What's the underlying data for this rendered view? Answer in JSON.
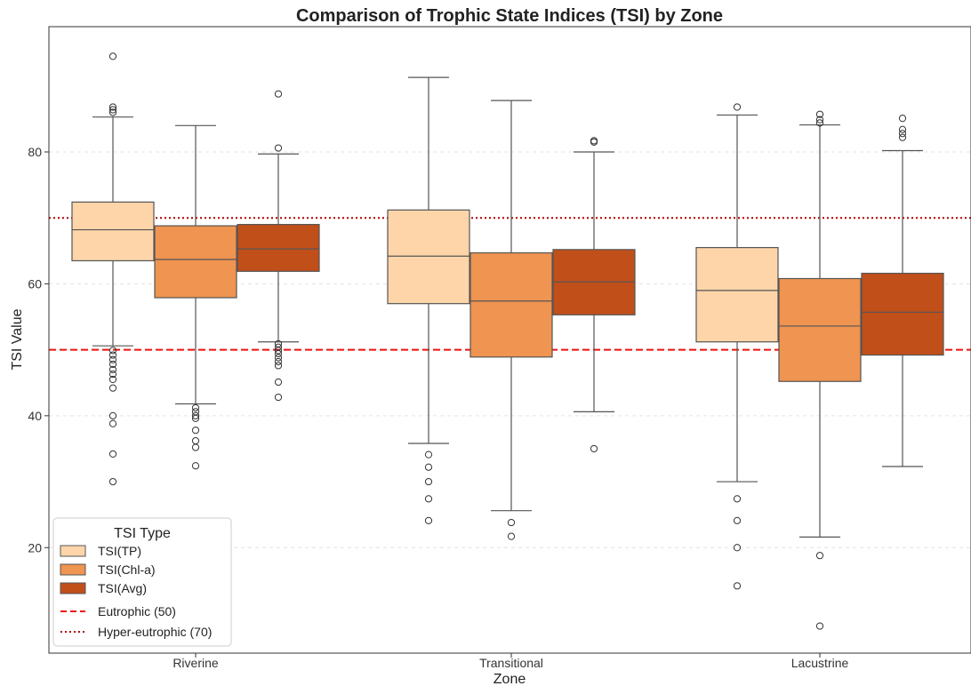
{
  "chart_data": {
    "type": "box",
    "title": "Comparison of Trophic State Indices (TSI) by Zone",
    "xlabel": "Zone",
    "ylabel": "TSI Value",
    "ylim": [
      4,
      99
    ],
    "yticks": [
      20,
      40,
      60,
      80
    ],
    "grid": "horizontal dashed",
    "categories": [
      "Riverine",
      "Transitional",
      "Lacustrine"
    ],
    "legend": {
      "title": "TSI Type",
      "position": "lower-left"
    },
    "series": [
      {
        "name": "TSI(TP)",
        "color": "#fdd5a9",
        "boxes": [
          {
            "whislo": 50.6,
            "q1": 63.5,
            "med": 68.2,
            "q3": 72.4,
            "whishi": 85.3,
            "fliers": [
              86.0,
              86.4,
              86.8,
              94.5,
              49.9,
              49.2,
              48.5,
              47.8,
              47.0,
              46.3,
              45.5,
              44.2,
              40.0,
              38.8,
              34.2,
              30.0
            ]
          },
          {
            "whislo": 35.8,
            "q1": 57.0,
            "med": 64.2,
            "q3": 71.2,
            "whishi": 91.3,
            "fliers": [
              34.1,
              32.2,
              30.0,
              27.4,
              24.1
            ]
          },
          {
            "whislo": 30.0,
            "q1": 51.2,
            "med": 59.0,
            "q3": 65.5,
            "whishi": 85.6,
            "fliers": [
              86.8,
              27.4,
              24.1,
              20.0,
              14.2
            ]
          }
        ]
      },
      {
        "name": "TSI(Chl-a)",
        "color": "#ef9451",
        "boxes": [
          {
            "whislo": 41.8,
            "q1": 57.9,
            "med": 63.7,
            "q3": 68.8,
            "whishi": 84.0,
            "fliers": [
              41.2,
              40.6,
              40.0,
              39.6,
              37.8,
              36.2,
              35.2,
              32.4
            ]
          },
          {
            "whislo": 25.6,
            "q1": 48.9,
            "med": 57.4,
            "q3": 64.7,
            "whishi": 87.8,
            "fliers": [
              23.8,
              21.7
            ]
          },
          {
            "whislo": 21.6,
            "q1": 45.2,
            "med": 53.6,
            "q3": 60.8,
            "whishi": 84.1,
            "fliers": [
              85.7,
              84.9,
              84.4,
              18.8,
              8.1
            ]
          }
        ]
      },
      {
        "name": "TSI(Avg)",
        "color": "#c14f1a",
        "boxes": [
          {
            "whislo": 51.2,
            "q1": 61.9,
            "med": 65.3,
            "q3": 69.0,
            "whishi": 79.7,
            "fliers": [
              80.6,
              88.8,
              50.9,
              50.4,
              49.9,
              49.4,
              48.8,
              48.2,
              47.6,
              45.1,
              42.8
            ]
          },
          {
            "whislo": 40.6,
            "q1": 55.3,
            "med": 60.3,
            "q3": 65.2,
            "whishi": 80.0,
            "fliers": [
              81.7,
              81.5,
              35.0
            ]
          },
          {
            "whislo": 32.3,
            "q1": 49.2,
            "med": 55.7,
            "q3": 61.6,
            "whishi": 80.2,
            "fliers": [
              82.2,
              82.8,
              83.4,
              85.1
            ]
          }
        ]
      }
    ],
    "reference_lines": [
      {
        "name": "Eutrophic (50)",
        "value": 50,
        "color": "#ee1111",
        "style": "dashed"
      },
      {
        "name": "Hyper-eutrophic (70)",
        "value": 70,
        "color": "#b30000",
        "style": "dotted"
      }
    ]
  }
}
